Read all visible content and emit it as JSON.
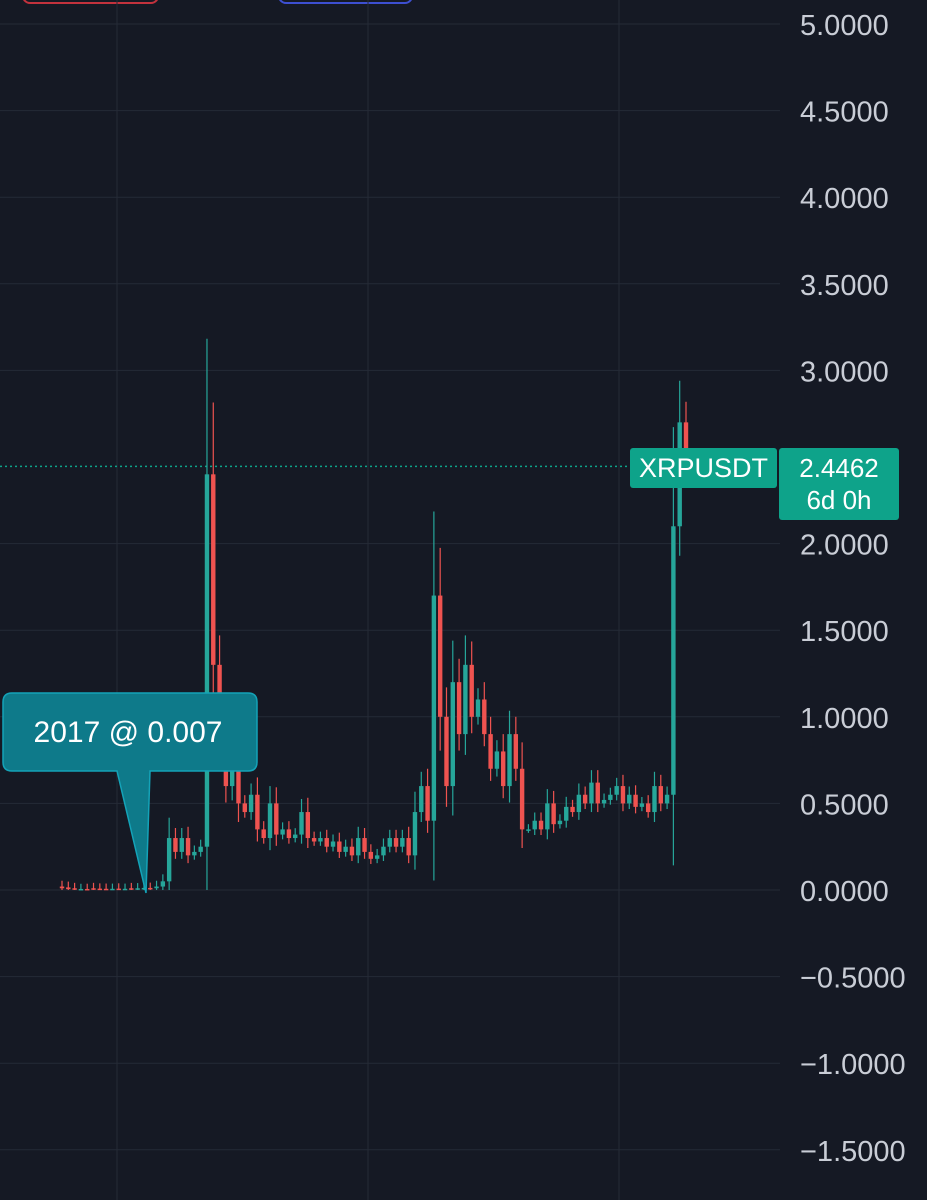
{
  "toolbar": {
    "left_button_color": "#c2323d",
    "right_button_color": "#3d4fd1"
  },
  "symbol": {
    "name": "XRPUSDT",
    "price": "2.4462",
    "countdown": "6d 0h",
    "color": "#0ea38a"
  },
  "annotation": {
    "text": "2017 @ 0.007",
    "color": "#0e7a8a"
  },
  "colors": {
    "background": "#151924",
    "up": "#26a69a",
    "down": "#ef5350",
    "grid": "#252a36"
  },
  "chart_data": {
    "type": "candlestick",
    "title": "",
    "xlabel": "",
    "ylabel": "",
    "ylim": [
      -1.7,
      5.2
    ],
    "grid": true,
    "y_ticks": [
      "5.0000",
      "4.5000",
      "4.0000",
      "3.5000",
      "3.0000",
      "2.0000",
      "1.5000",
      "1.0000",
      "0.5000",
      "0.0000",
      "−0.5000",
      "−1.0000",
      "−1.5000"
    ],
    "y_tick_values": [
      5.0,
      4.5,
      4.0,
      3.5,
      3.0,
      2.0,
      1.5,
      1.0,
      0.5,
      0.0,
      -0.5,
      -1.0,
      -1.5
    ],
    "last_price": 2.4462,
    "series": [
      {
        "values": [
          [
            0.02,
            0.01
          ],
          [
            0.015,
            0.005
          ],
          [
            0.01,
            0.006
          ],
          [
            0.006,
            0.006
          ],
          [
            0.006,
            0.005
          ],
          [
            0.01,
            0.006
          ],
          [
            0.008,
            0.007
          ],
          [
            0.007,
            0.006
          ],
          [
            0.007,
            0.007
          ],
          [
            0.008,
            0.006
          ],
          [
            0.007,
            0.007
          ],
          [
            0.01,
            0.007
          ],
          [
            0.01,
            0.01
          ],
          [
            0.01,
            0.012
          ],
          [
            0.012,
            0.01
          ],
          [
            0.01,
            0.02
          ],
          [
            0.02,
            0.05
          ],
          [
            0.05,
            0.3
          ],
          [
            0.3,
            0.22
          ],
          [
            0.22,
            0.3
          ],
          [
            0.3,
            0.2
          ],
          [
            0.2,
            0.22
          ],
          [
            0.22,
            0.25
          ],
          [
            0.25,
            2.4
          ],
          [
            2.4,
            1.3
          ],
          [
            1.3,
            0.9
          ],
          [
            0.9,
            0.6
          ],
          [
            0.6,
            0.85
          ],
          [
            0.85,
            0.5
          ],
          [
            0.5,
            0.45
          ],
          [
            0.45,
            0.55
          ],
          [
            0.55,
            0.35
          ],
          [
            0.35,
            0.3
          ],
          [
            0.3,
            0.5
          ],
          [
            0.5,
            0.32
          ],
          [
            0.32,
            0.35
          ],
          [
            0.35,
            0.3
          ],
          [
            0.3,
            0.32
          ],
          [
            0.32,
            0.45
          ],
          [
            0.45,
            0.3
          ],
          [
            0.3,
            0.28
          ],
          [
            0.28,
            0.3
          ],
          [
            0.3,
            0.25
          ],
          [
            0.25,
            0.28
          ],
          [
            0.28,
            0.22
          ],
          [
            0.22,
            0.25
          ],
          [
            0.25,
            0.2
          ],
          [
            0.2,
            0.3
          ],
          [
            0.3,
            0.22
          ],
          [
            0.22,
            0.18
          ],
          [
            0.18,
            0.2
          ],
          [
            0.2,
            0.25
          ],
          [
            0.25,
            0.3
          ],
          [
            0.3,
            0.25
          ],
          [
            0.25,
            0.3
          ],
          [
            0.3,
            0.2
          ],
          [
            0.2,
            0.45
          ],
          [
            0.45,
            0.6
          ],
          [
            0.6,
            0.4
          ],
          [
            0.4,
            1.7
          ],
          [
            1.7,
            1.0
          ],
          [
            1.0,
            0.6
          ],
          [
            0.6,
            1.2
          ],
          [
            1.2,
            0.9
          ],
          [
            0.9,
            1.3
          ],
          [
            1.3,
            1.0
          ],
          [
            1.0,
            1.1
          ],
          [
            1.1,
            0.9
          ],
          [
            0.9,
            0.7
          ],
          [
            0.7,
            0.8
          ],
          [
            0.8,
            0.6
          ],
          [
            0.6,
            0.9
          ],
          [
            0.9,
            0.7
          ],
          [
            0.7,
            0.35
          ],
          [
            0.35,
            0.35
          ],
          [
            0.35,
            0.4
          ],
          [
            0.4,
            0.35
          ],
          [
            0.35,
            0.5
          ],
          [
            0.5,
            0.38
          ],
          [
            0.38,
            0.4
          ],
          [
            0.4,
            0.48
          ],
          [
            0.48,
            0.45
          ],
          [
            0.45,
            0.55
          ],
          [
            0.55,
            0.5
          ],
          [
            0.5,
            0.62
          ],
          [
            0.62,
            0.5
          ],
          [
            0.5,
            0.52
          ],
          [
            0.52,
            0.55
          ],
          [
            0.55,
            0.6
          ],
          [
            0.6,
            0.5
          ],
          [
            0.5,
            0.55
          ],
          [
            0.55,
            0.48
          ],
          [
            0.48,
            0.5
          ],
          [
            0.5,
            0.45
          ],
          [
            0.45,
            0.6
          ],
          [
            0.6,
            0.5
          ],
          [
            0.5,
            0.55
          ],
          [
            0.55,
            2.1
          ],
          [
            2.1,
            2.7
          ],
          [
            2.7,
            2.4462
          ]
        ]
      }
    ]
  }
}
